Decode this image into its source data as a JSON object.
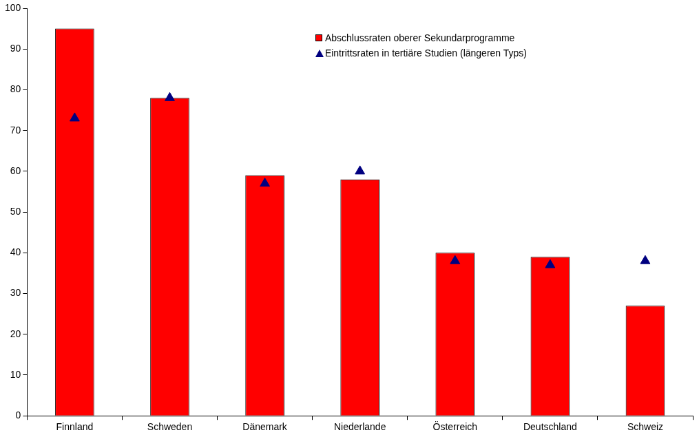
{
  "chart_data": {
    "type": "bar",
    "categories": [
      "Finnland",
      "Schweden",
      "Dänemark",
      "Niederlande",
      "Österreich",
      "Deutschland",
      "Schweiz"
    ],
    "series": [
      {
        "name": "Abschlussraten oberer Sekundarprogramme",
        "color": "#ff0000",
        "values": [
          95,
          78,
          59,
          58,
          40,
          39,
          27
        ]
      },
      {
        "name": "Eintrittsraten in tertiäre Studien (längeren Typs)",
        "type": "scatter",
        "color": "#000080",
        "x": [
          "Finnland",
          "Schweden",
          "Dänemark",
          "Niederlande",
          "Österreich",
          "Deutschland",
          "Schweiz"
        ],
        "values": [
          73,
          78,
          57,
          60,
          38,
          37,
          38
        ]
      }
    ],
    "ylim": [
      0,
      100
    ],
    "yticks": [
      0,
      10,
      20,
      30,
      40,
      50,
      60,
      70,
      80,
      90,
      100
    ],
    "grid": false,
    "legend": "top right",
    "marker": "triangle"
  }
}
